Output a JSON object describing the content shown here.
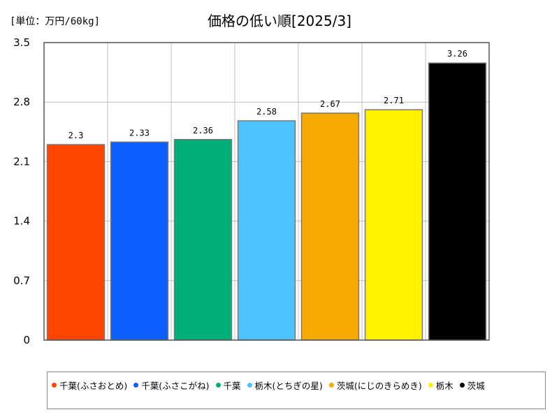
{
  "unit_label": "[単位：万円/60kg]",
  "title": "価格の低い順[2025/3]",
  "chart_data": {
    "type": "bar",
    "title": "価格の低い順[2025/3]",
    "unit": "[単位：万円/60kg]",
    "ylim": [
      0,
      3.5
    ],
    "yticks": [
      "0",
      "0.7",
      "1.4",
      "2.1",
      "2.8",
      "3.5"
    ],
    "grid": true,
    "legend_position": "bottom",
    "series": [
      {
        "name": "千葉(ふさおとめ)",
        "value": 2.3,
        "label": "2.3",
        "color": "#ff4500"
      },
      {
        "name": "千葉(ふさこがね)",
        "value": 2.33,
        "label": "2.33",
        "color": "#0d5eff"
      },
      {
        "name": "千葉",
        "value": 2.36,
        "label": "2.36",
        "color": "#00ae78"
      },
      {
        "name": "栃木(とちぎの星)",
        "value": 2.58,
        "label": "2.58",
        "color": "#4dc4ff"
      },
      {
        "name": "茨城(にじのきらめき)",
        "value": 2.67,
        "label": "2.67",
        "color": "#f6aa00"
      },
      {
        "name": "栃木",
        "value": 2.71,
        "label": "2.71",
        "color": "#fff100"
      },
      {
        "name": "茨城",
        "value": 3.26,
        "label": "3.26",
        "color": "#000000"
      }
    ]
  }
}
